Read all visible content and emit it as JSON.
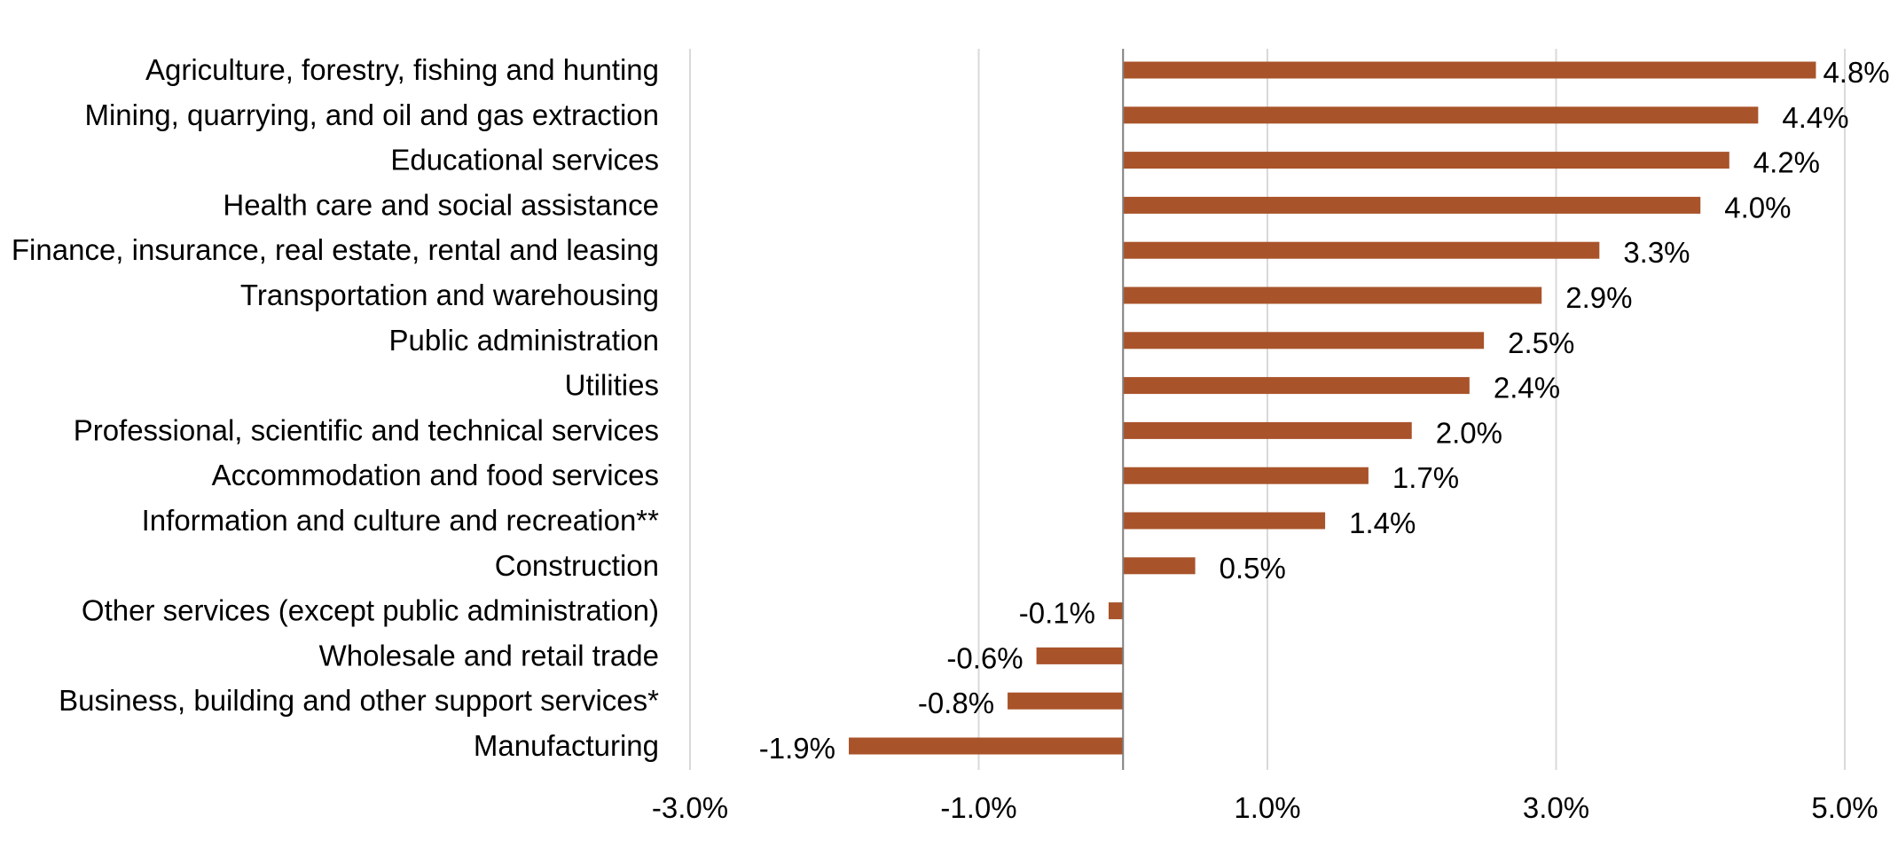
{
  "chart_data": {
    "type": "bar",
    "orientation": "horizontal",
    "categories": [
      "Agriculture, forestry, fishing and hunting",
      "Mining, quarrying, and oil and gas extraction",
      "Educational services",
      "Health care and social assistance",
      "Finance, insurance, real estate, rental and leasing",
      "Transportation and warehousing",
      "Public administration",
      "Utilities",
      "Professional, scientific and technical services",
      "Accommodation and food services",
      "Information and culture and recreation**",
      "Construction",
      "Other services (except public administration)",
      "Wholesale and retail trade",
      "Business, building and other support services*",
      "Manufacturing"
    ],
    "values": [
      4.8,
      4.4,
      4.2,
      4.0,
      3.3,
      2.9,
      2.5,
      2.4,
      2.0,
      1.7,
      1.4,
      0.5,
      -0.1,
      -0.6,
      -0.8,
      -1.9
    ],
    "value_labels": [
      "4.8%",
      "4.4%",
      "4.2%",
      "4.0%",
      "3.3%",
      "2.9%",
      "2.5%",
      "2.4%",
      "2.0%",
      "1.7%",
      "1.4%",
      "0.5%",
      "-0.1%",
      "-0.6%",
      "-0.8%",
      "-1.9%"
    ],
    "x_ticks": [
      -3.0,
      -1.0,
      1.0,
      3.0,
      5.0
    ],
    "x_tick_labels": [
      "-3.0%",
      "-1.0%",
      "1.0%",
      "3.0%",
      "5.0%"
    ],
    "xlim": [
      -3.0,
      5.0
    ],
    "grid": "vertical",
    "legend": "none",
    "bar_color": "#a9532a",
    "title": "",
    "xlabel": "",
    "ylabel": ""
  }
}
